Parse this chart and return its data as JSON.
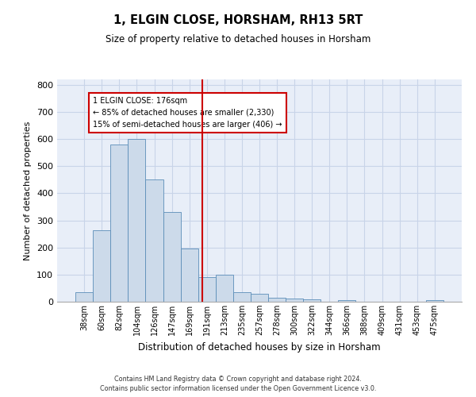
{
  "title": "1, ELGIN CLOSE, HORSHAM, RH13 5RT",
  "subtitle": "Size of property relative to detached houses in Horsham",
  "xlabel": "Distribution of detached houses by size in Horsham",
  "ylabel": "Number of detached properties",
  "footer_line1": "Contains HM Land Registry data © Crown copyright and database right 2024.",
  "footer_line2": "Contains public sector information licensed under the Open Government Licence v3.0.",
  "bar_labels": [
    "38sqm",
    "60sqm",
    "82sqm",
    "104sqm",
    "126sqm",
    "147sqm",
    "169sqm",
    "191sqm",
    "213sqm",
    "235sqm",
    "257sqm",
    "278sqm",
    "300sqm",
    "322sqm",
    "344sqm",
    "366sqm",
    "388sqm",
    "409sqm",
    "431sqm",
    "453sqm",
    "475sqm"
  ],
  "bar_values": [
    35,
    265,
    580,
    600,
    450,
    330,
    195,
    90,
    100,
    35,
    30,
    15,
    13,
    10,
    0,
    5,
    0,
    0,
    0,
    0,
    5
  ],
  "bar_color": "#ccdaea",
  "bar_edge_color": "#5b8db8",
  "grid_color": "#c8d4e8",
  "background_color": "#e8eef8",
  "red_line_index": 6.72,
  "annotation_text_line1": "1 ELGIN CLOSE: 176sqm",
  "annotation_text_line2": "← 85% of detached houses are smaller (2,330)",
  "annotation_text_line3": "15% of semi-detached houses are larger (406) →",
  "annotation_box_facecolor": "#ffffff",
  "annotation_border_color": "#cc0000",
  "ylim": [
    0,
    820
  ],
  "yticks": [
    0,
    100,
    200,
    300,
    400,
    500,
    600,
    700,
    800
  ],
  "figwidth": 6.0,
  "figheight": 5.0,
  "dpi": 100
}
